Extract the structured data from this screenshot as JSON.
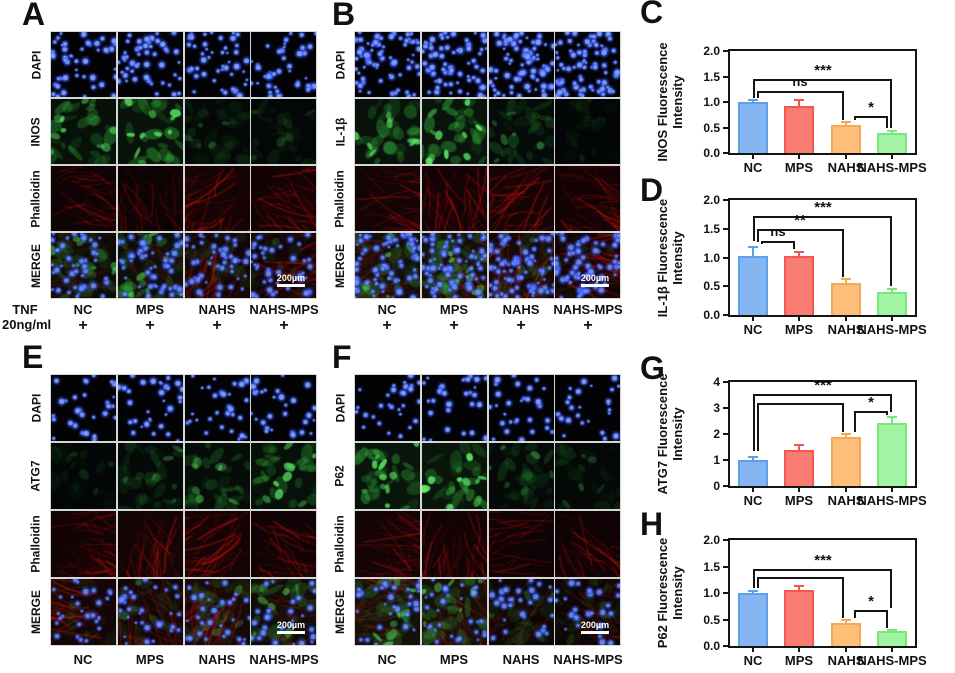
{
  "colors": {
    "bar_fills": [
      "#85B6F2",
      "#F97C72",
      "#FCBE79",
      "#A2F4A2"
    ],
    "bar_strokes": [
      "#5E9FEC",
      "#F2584E",
      "#F7A855",
      "#77E77B"
    ],
    "axis": "#141414",
    "dapi_blue": "#3b5bff",
    "green_signal": "#3cd45c",
    "red_signal": "#cf2617",
    "scale_bar_color": "#ffffff"
  },
  "micro_panels": [
    {
      "id": "A",
      "letter": "A",
      "columns": [
        "NC",
        "MPS",
        "NAHS",
        "NAHS-MPS"
      ],
      "rows": [
        {
          "label": "DAPI",
          "type": "nuclei",
          "levels": [
            0.55,
            0.6,
            0.55,
            0.5
          ]
        },
        {
          "label": "INOS",
          "type": "green",
          "levels": [
            0.8,
            0.95,
            0.3,
            0.25
          ]
        },
        {
          "label": "Phalloidin",
          "type": "red",
          "levels": [
            0.55,
            0.5,
            0.9,
            0.85
          ]
        },
        {
          "label": "MERGE",
          "type": "merge",
          "levels": [
            0.7,
            0.7,
            0.8,
            0.75
          ]
        }
      ],
      "plus_row": [
        "+",
        "+",
        "+",
        "+"
      ],
      "treatment_line1": "TNF",
      "treatment_line2": "20ng/ml",
      "scale_bar_text": "200µm"
    },
    {
      "id": "B",
      "letter": "B",
      "columns": [
        "NC",
        "MPS",
        "NAHS",
        "NAHS-MPS"
      ],
      "rows": [
        {
          "label": "DAPI",
          "type": "nuclei",
          "levels": [
            0.95,
            0.9,
            1.0,
            0.95
          ]
        },
        {
          "label": "IL-1β",
          "type": "green",
          "levels": [
            0.85,
            1.0,
            0.45,
            0.15
          ]
        },
        {
          "label": "Phalloidin",
          "type": "red",
          "levels": [
            0.75,
            0.85,
            0.95,
            0.85
          ]
        },
        {
          "label": "MERGE",
          "type": "merge",
          "levels": [
            0.85,
            0.9,
            0.9,
            0.85
          ]
        }
      ],
      "plus_row": [
        "+",
        "+",
        "+",
        "+"
      ],
      "scale_bar_text": "200µm"
    },
    {
      "id": "E",
      "letter": "E",
      "columns": [
        "NC",
        "MPS",
        "NAHS",
        "NAHS-MPS"
      ],
      "rows": [
        {
          "label": "DAPI",
          "type": "nuclei",
          "levels": [
            0.3,
            0.35,
            0.3,
            0.3
          ]
        },
        {
          "label": "ATG7",
          "type": "green",
          "levels": [
            0.2,
            0.4,
            0.55,
            0.8
          ]
        },
        {
          "label": "Phalloidin",
          "type": "red",
          "levels": [
            0.85,
            0.8,
            0.95,
            0.7
          ]
        },
        {
          "label": "MERGE",
          "type": "merge",
          "levels": [
            0.85,
            0.8,
            0.9,
            0.7
          ]
        }
      ],
      "scale_bar_text": "200µm"
    },
    {
      "id": "F",
      "letter": "F",
      "columns": [
        "NC",
        "MPS",
        "NAHS",
        "NAHS-MPS"
      ],
      "rows": [
        {
          "label": "DAPI",
          "type": "nuclei",
          "levels": [
            0.3,
            0.3,
            0.3,
            0.25
          ]
        },
        {
          "label": "P62",
          "type": "green",
          "levels": [
            1.0,
            1.0,
            0.4,
            0.3
          ]
        },
        {
          "label": "Phalloidin",
          "type": "red",
          "levels": [
            0.8,
            0.85,
            0.6,
            0.65
          ]
        },
        {
          "label": "MERGE",
          "type": "merge",
          "levels": [
            0.85,
            0.9,
            0.7,
            0.65
          ]
        }
      ],
      "scale_bar_text": "200µm"
    }
  ],
  "chart_data": [
    {
      "id": "C",
      "type": "bar",
      "ylabel_line1": "INOS Fluorescence",
      "ylabel_line2": "Intensity",
      "categories": [
        "NC",
        "MPS",
        "NAHS",
        "NAHS-MPS"
      ],
      "values": [
        1.0,
        0.93,
        0.54,
        0.39
      ],
      "errors": [
        0.04,
        0.11,
        0.07,
        0.05
      ],
      "ylim": [
        0,
        2.0
      ],
      "yticks": [
        "0.0",
        "0.5",
        "1.0",
        "1.5",
        "2.0"
      ],
      "significance": [
        {
          "from": 0,
          "to": 3,
          "label": "***",
          "y": 1.45,
          "yl": 1.08,
          "yr": 0.48
        },
        {
          "from": 0,
          "to": 2,
          "label": "ns",
          "y": 1.22,
          "yl": 1.08,
          "yr": 0.66
        },
        {
          "from": 2,
          "to": 3,
          "label": "*",
          "y": 0.72,
          "yl": 0.64,
          "yr": 0.48
        }
      ]
    },
    {
      "id": "D",
      "type": "bar",
      "ylabel_line1": "IL-1β Fluorescence",
      "ylabel_line2": "Intensity",
      "categories": [
        "NC",
        "MPS",
        "NAHS",
        "NAHS-MPS"
      ],
      "values": [
        1.03,
        1.03,
        0.55,
        0.4
      ],
      "errors": [
        0.15,
        0.06,
        0.07,
        0.05
      ],
      "ylim": [
        0,
        2.0
      ],
      "yticks": [
        "0.0",
        "0.5",
        "1.0",
        "1.5",
        "2.0"
      ],
      "significance": [
        {
          "from": 0,
          "to": 3,
          "label": "***",
          "y": 1.72,
          "yl": 1.28,
          "yr": 0.5
        },
        {
          "from": 0,
          "to": 2,
          "label": "**",
          "y": 1.5,
          "yl": 1.28,
          "yr": 0.66
        },
        {
          "from": 0,
          "to": 1,
          "label": "ns",
          "y": 1.28,
          "yl": 1.22,
          "yr": 1.14
        }
      ]
    },
    {
      "id": "G",
      "type": "bar",
      "ylabel_line1": "ATG7 Fluorescence",
      "ylabel_line2": "Intensity",
      "categories": [
        "NC",
        "MPS",
        "NAHS",
        "NAHS-MPS"
      ],
      "values": [
        1.0,
        1.4,
        1.9,
        2.42
      ],
      "errors": [
        0.13,
        0.18,
        0.1,
        0.25
      ],
      "ylim": [
        0,
        4
      ],
      "yticks": [
        "0",
        "1",
        "2",
        "3",
        "4"
      ],
      "significance": [
        {
          "from": 0,
          "to": 3,
          "label": "***",
          "y": 3.55,
          "yl": 1.35,
          "yr": 2.85
        },
        {
          "from": 0,
          "to": 2,
          "label": "",
          "y": 3.2,
          "yl": 1.35,
          "yr": 2.1
        },
        {
          "from": 2,
          "to": 3,
          "label": "*",
          "y": 2.88,
          "yl": 2.08,
          "yr": 2.72
        }
      ]
    },
    {
      "id": "H",
      "type": "bar",
      "ylabel_line1": "P62 Fluorescence",
      "ylabel_line2": "Intensity",
      "categories": [
        "NC",
        "MPS",
        "NAHS",
        "NAHS-MPS"
      ],
      "values": [
        1.0,
        1.05,
        0.44,
        0.29
      ],
      "errors": [
        0.04,
        0.09,
        0.05,
        0.02
      ],
      "ylim": [
        0,
        2.0
      ],
      "yticks": [
        "0.0",
        "0.5",
        "1.0",
        "1.5",
        "2.0"
      ],
      "significance": [
        {
          "from": 0,
          "to": 3,
          "label": "***",
          "y": 1.45,
          "yl": 1.1,
          "yr": 0.72
        },
        {
          "from": 0,
          "to": 2,
          "label": "",
          "y": 1.3,
          "yl": 1.1,
          "yr": 0.52
        },
        {
          "from": 2,
          "to": 3,
          "label": "*",
          "y": 0.68,
          "yl": 0.52,
          "yr": 0.34
        }
      ]
    }
  ]
}
